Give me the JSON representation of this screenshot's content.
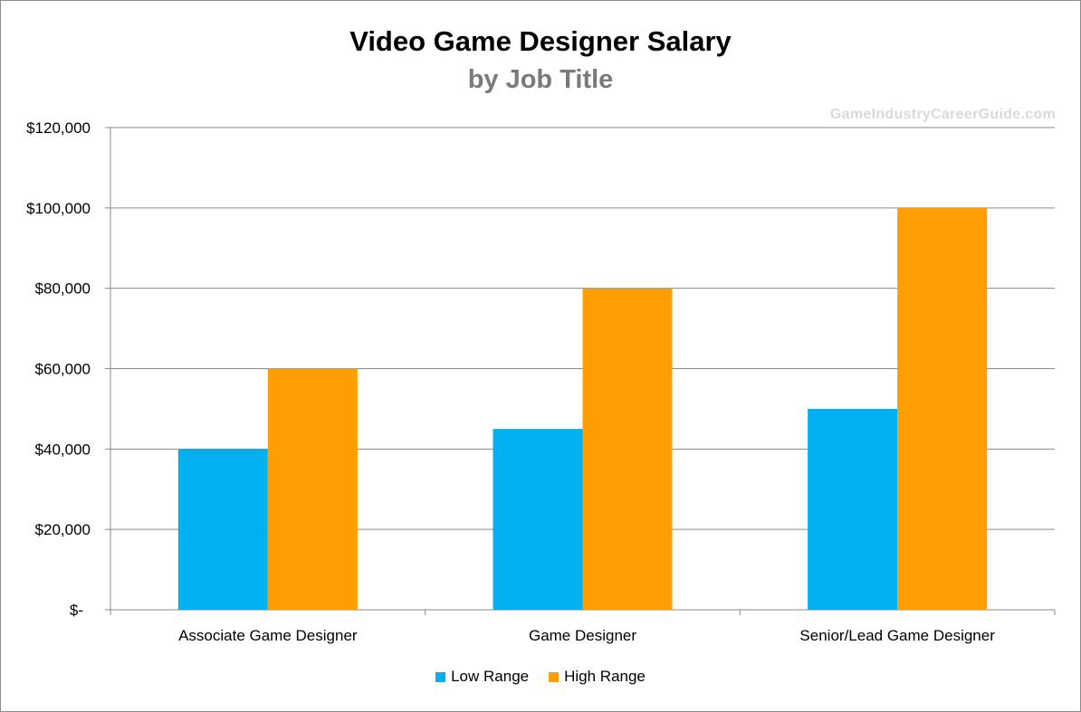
{
  "chart_data": {
    "type": "bar",
    "title": "Video Game Designer Salary",
    "subtitle": "by Job Title",
    "watermark": "GameIndustryCareerGuide.com",
    "categories": [
      "Associate Game Designer",
      "Game Designer",
      "Senior/Lead Game Designer"
    ],
    "series": [
      {
        "name": "Low Range",
        "values": [
          40000,
          45000,
          50000
        ],
        "color": "#00b0f0"
      },
      {
        "name": "High Range",
        "values": [
          60000,
          80000,
          100000
        ],
        "color": "#ff9e00"
      }
    ],
    "ylim": [
      0,
      120000
    ],
    "yticks": [
      0,
      20000,
      40000,
      60000,
      80000,
      100000,
      120000
    ],
    "ytick_labels": [
      "$-",
      "$20,000",
      "$40,000",
      "$60,000",
      "$80,000",
      "$100,000",
      "$120,000"
    ],
    "grid": true,
    "legend_position": "bottom",
    "xlabel": "",
    "ylabel": ""
  }
}
